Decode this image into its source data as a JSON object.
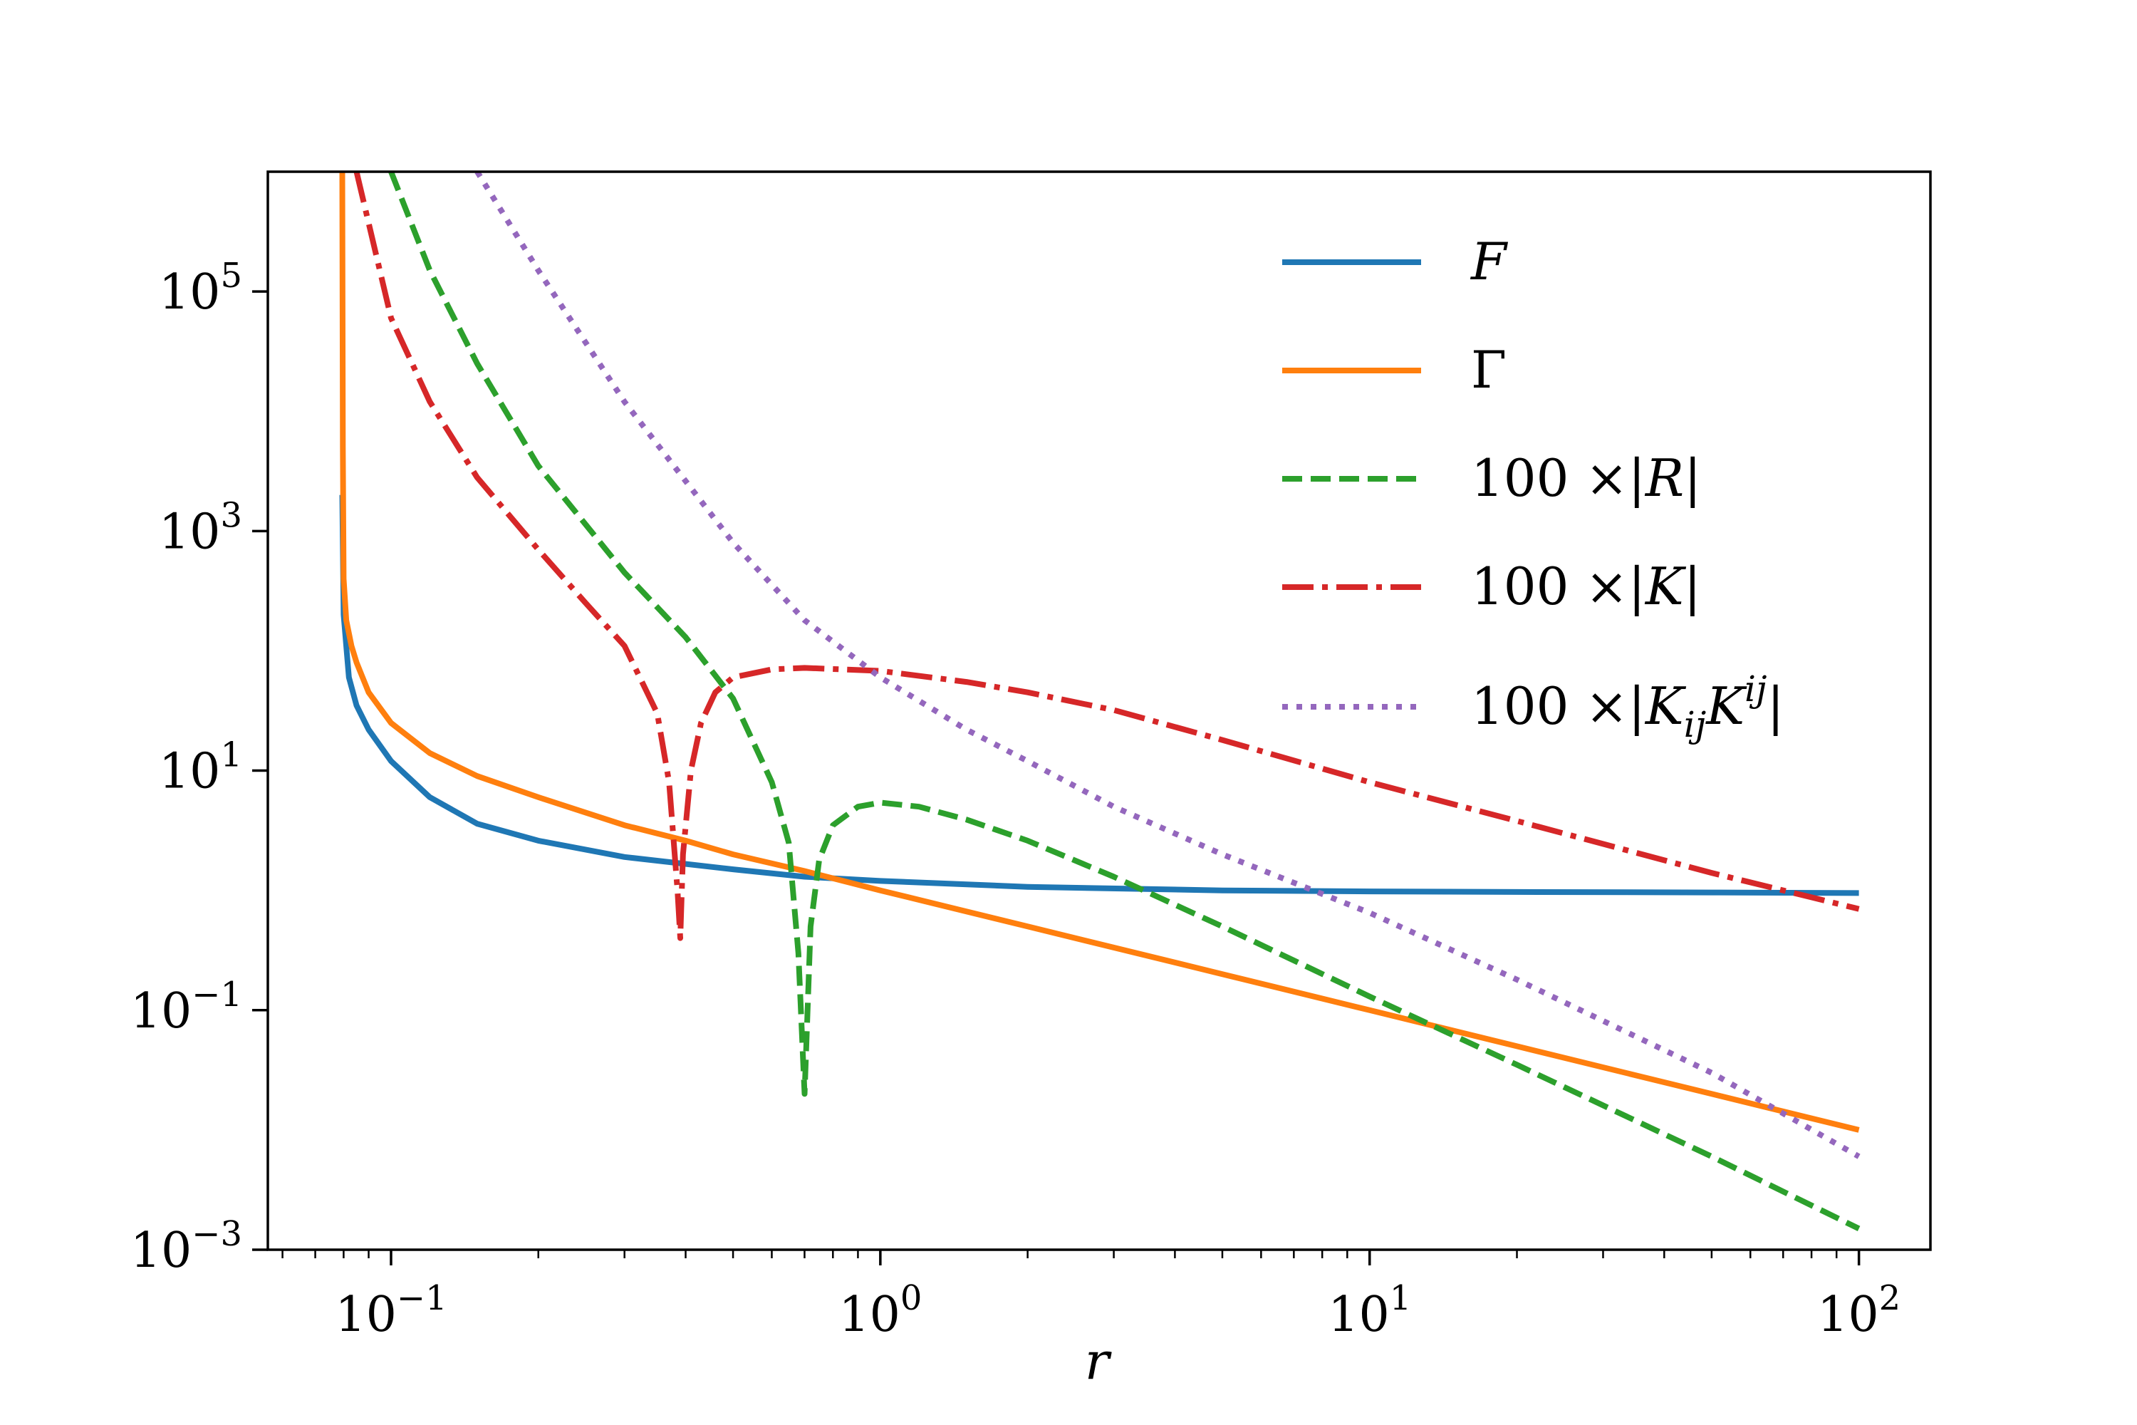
{
  "chart_data": {
    "type": "line",
    "title": "",
    "xlabel": "r",
    "ylabel": "",
    "xscale": "log",
    "yscale": "log",
    "xlim": [
      0.056,
      140
    ],
    "ylim": [
      0.001,
      1000000
    ],
    "x_tick_labels": [
      {
        "value": 0.1,
        "base": "10",
        "exp": "−1"
      },
      {
        "value": 1,
        "base": "10",
        "exp": "0"
      },
      {
        "value": 10,
        "base": "10",
        "exp": "1"
      },
      {
        "value": 100,
        "base": "10",
        "exp": "2"
      }
    ],
    "y_tick_labels": [
      {
        "value": 0.001,
        "base": "10",
        "exp": "−3"
      },
      {
        "value": 0.1,
        "base": "10",
        "exp": "−1"
      },
      {
        "value": 10,
        "base": "10",
        "exp": "1"
      },
      {
        "value": 1000,
        "base": "10",
        "exp": "3"
      },
      {
        "value": 100000,
        "base": "10",
        "exp": "5"
      }
    ],
    "legend_position": "top-right",
    "series": [
      {
        "name": "F",
        "color": "#1f77b4",
        "style": "solid",
        "x": [
          0.0795,
          0.08,
          0.082,
          0.085,
          0.09,
          0.1,
          0.12,
          0.15,
          0.2,
          0.3,
          0.5,
          0.7,
          1,
          2,
          5,
          10,
          20,
          50,
          100
        ],
        "y": [
          2000,
          200,
          60,
          35,
          22,
          12,
          6,
          3.6,
          2.6,
          1.9,
          1.5,
          1.3,
          1.2,
          1.07,
          1.0,
          0.98,
          0.97,
          0.96,
          0.95
        ]
      },
      {
        "name": "Γ",
        "color": "#ff7f0e",
        "style": "solid",
        "x": [
          0.0795,
          0.0797,
          0.08,
          0.081,
          0.083,
          0.085,
          0.09,
          0.1,
          0.12,
          0.15,
          0.2,
          0.3,
          0.4,
          0.5,
          0.7,
          1,
          2,
          5,
          10,
          20,
          50,
          100
        ],
        "y": [
          1000000,
          5000,
          400,
          180,
          110,
          80,
          45,
          25,
          14,
          9,
          6,
          3.5,
          2.6,
          2.0,
          1.45,
          1.0,
          0.5,
          0.2,
          0.1,
          0.05,
          0.02,
          0.01
        ]
      },
      {
        "name": "100 ×|R|",
        "color": "#2ca02c",
        "style": "dashed",
        "x": [
          0.1,
          0.12,
          0.15,
          0.2,
          0.3,
          0.4,
          0.5,
          0.6,
          0.65,
          0.68,
          0.7,
          0.72,
          0.75,
          0.8,
          0.9,
          1.0,
          1.2,
          1.5,
          2,
          3,
          5,
          10,
          20,
          50,
          100
        ],
        "y": [
          1000000,
          150000,
          25000,
          3500,
          450,
          130,
          40,
          8,
          2.5,
          0.3,
          0.02,
          0.5,
          1.8,
          3.5,
          5.0,
          5.4,
          5.0,
          3.9,
          2.6,
          1.3,
          0.5,
          0.13,
          0.035,
          0.006,
          0.0015
        ]
      },
      {
        "name": "100 ×|K|",
        "color": "#d62728",
        "style": "dashdot",
        "x": [
          0.085,
          0.1,
          0.12,
          0.15,
          0.2,
          0.25,
          0.3,
          0.35,
          0.37,
          0.385,
          0.39,
          0.395,
          0.41,
          0.43,
          0.46,
          0.5,
          0.6,
          0.7,
          1,
          1.5,
          2,
          3,
          5,
          10,
          20,
          50,
          100
        ],
        "y": [
          1000000,
          60000,
          12000,
          2800,
          700,
          250,
          110,
          30,
          8,
          1,
          0.4,
          2,
          10,
          25,
          45,
          60,
          70,
          72,
          68,
          55,
          45,
          32,
          18,
          8,
          3.8,
          1.4,
          0.7
        ]
      },
      {
        "name": "100 ×|K_ij K^ij|",
        "color": "#9467bd",
        "style": "dotted",
        "x": [
          0.15,
          0.2,
          0.3,
          0.5,
          0.7,
          1,
          1.5,
          2,
          3,
          5,
          10,
          20,
          50,
          100
        ],
        "y": [
          1000000,
          150000,
          12000,
          800,
          180,
          60,
          22,
          12,
          5,
          2,
          0.65,
          0.18,
          0.03,
          0.006
        ]
      }
    ]
  },
  "legend": {
    "items": [
      {
        "label": "F"
      },
      {
        "label": "Γ"
      },
      {
        "prefix": "100 ×|",
        "var": "R",
        "suffix": "|"
      },
      {
        "prefix": "100 ×|",
        "var": "K",
        "suffix": "|"
      },
      {
        "prefix": "100 ×|",
        "v1": "K",
        "sub": "ij",
        "v2": "K",
        "sup": "ij",
        "suffix": "|"
      }
    ]
  }
}
